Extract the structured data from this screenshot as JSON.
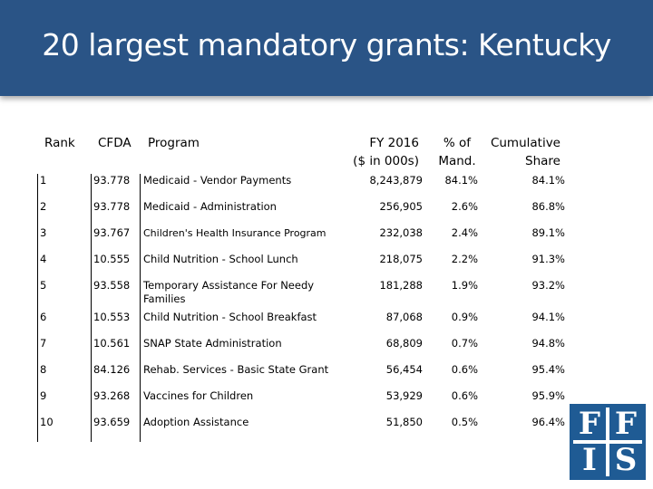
{
  "title": "20 largest mandatory grants: Kentucky",
  "headers": {
    "rank": "Rank",
    "cfda": "CFDA",
    "program": "Program",
    "fy_line1": "FY 2016",
    "fy_line2": "($ in 000s)",
    "pct_line1": "% of",
    "pct_line2": "Mand.",
    "cum_line1": "Cumulative",
    "cum_line2": "Share"
  },
  "rows": [
    {
      "rank": "1",
      "cfda": "93.778",
      "program": "Medicaid - Vendor Payments",
      "fy": "8,243,879",
      "pct": "84.1%",
      "cum": "84.1%"
    },
    {
      "rank": "2",
      "cfda": "93.778",
      "program": "Medicaid - Administration",
      "fy": "256,905",
      "pct": "2.6%",
      "cum": "86.8%"
    },
    {
      "rank": "3",
      "cfda": "93.767",
      "program": "Children's Health Insurance Program",
      "fy": "232,038",
      "pct": "2.4%",
      "cum": "89.1%"
    },
    {
      "rank": "4",
      "cfda": "10.555",
      "program": "Child Nutrition - School Lunch",
      "fy": "218,075",
      "pct": "2.2%",
      "cum": "91.3%"
    },
    {
      "rank": "5",
      "cfda": "93.558",
      "program": "Temporary Assistance For Needy Families",
      "fy": "181,288",
      "pct": "1.9%",
      "cum": "93.2%"
    },
    {
      "rank": "6",
      "cfda": "10.553",
      "program": "Child Nutrition - School Breakfast",
      "fy": "87,068",
      "pct": "0.9%",
      "cum": "94.1%"
    },
    {
      "rank": "7",
      "cfda": "10.561",
      "program": "SNAP State Administration",
      "fy": "68,809",
      "pct": "0.7%",
      "cum": "94.8%"
    },
    {
      "rank": "8",
      "cfda": "84.126",
      "program": "Rehab. Services - Basic State Grant",
      "fy": "56,454",
      "pct": "0.6%",
      "cum": "95.4%"
    },
    {
      "rank": "9",
      "cfda": "93.268",
      "program": "Vaccines for Children",
      "fy": "53,929",
      "pct": "0.6%",
      "cum": "95.9%"
    },
    {
      "rank": "10",
      "cfda": "93.659",
      "program": "Adoption Assistance",
      "fy": "51,850",
      "pct": "0.5%",
      "cum": "96.4%"
    }
  ],
  "logo": {
    "letters": [
      "F",
      "F",
      "I",
      "S"
    ]
  }
}
